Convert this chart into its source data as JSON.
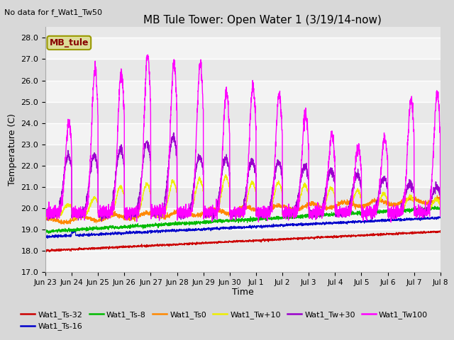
{
  "title": "MB Tule Tower: Open Water 1 (3/19/14-now)",
  "top_left_note": "No data for f_Wat1_Tw50",
  "ylabel": "Temperature (C)",
  "xlabel": "Time",
  "ylim": [
    17.0,
    28.5
  ],
  "yticks": [
    17.0,
    18.0,
    19.0,
    20.0,
    21.0,
    22.0,
    23.0,
    24.0,
    25.0,
    26.0,
    27.0,
    28.0
  ],
  "xtick_labels": [
    "Jun 23",
    "Jun 24",
    "Jun 25",
    "Jun 26",
    "Jun 27",
    "Jun 28",
    "Jun 29",
    "Jun 30",
    "Jul 1",
    "Jul 2",
    "Jul 3",
    "Jul 4",
    "Jul 5",
    "Jul 6",
    "Jul 7",
    "Jul 8"
  ],
  "num_points": 3000,
  "bg_color": "#d8d8d8",
  "plot_bg_color": "#e8e8e8",
  "series": [
    {
      "label": "Wat1_Ts-32",
      "color": "#cc0000",
      "lw": 0.8
    },
    {
      "label": "Wat1_Ts-16",
      "color": "#0000cc",
      "lw": 0.8
    },
    {
      "label": "Wat1_Ts-8",
      "color": "#00bb00",
      "lw": 0.8
    },
    {
      "label": "Wat1_Ts0",
      "color": "#ff8800",
      "lw": 0.8
    },
    {
      "label": "Wat1_Tw+10",
      "color": "#eeee00",
      "lw": 0.8
    },
    {
      "label": "Wat1_Tw+30",
      "color": "#9900cc",
      "lw": 0.9
    },
    {
      "label": "Wat1_Tw100",
      "color": "#ff00ff",
      "lw": 1.0
    }
  ],
  "legend_box_label": "MB_tule",
  "legend_box_color": "#dddd99",
  "legend_box_edge": "#999900"
}
